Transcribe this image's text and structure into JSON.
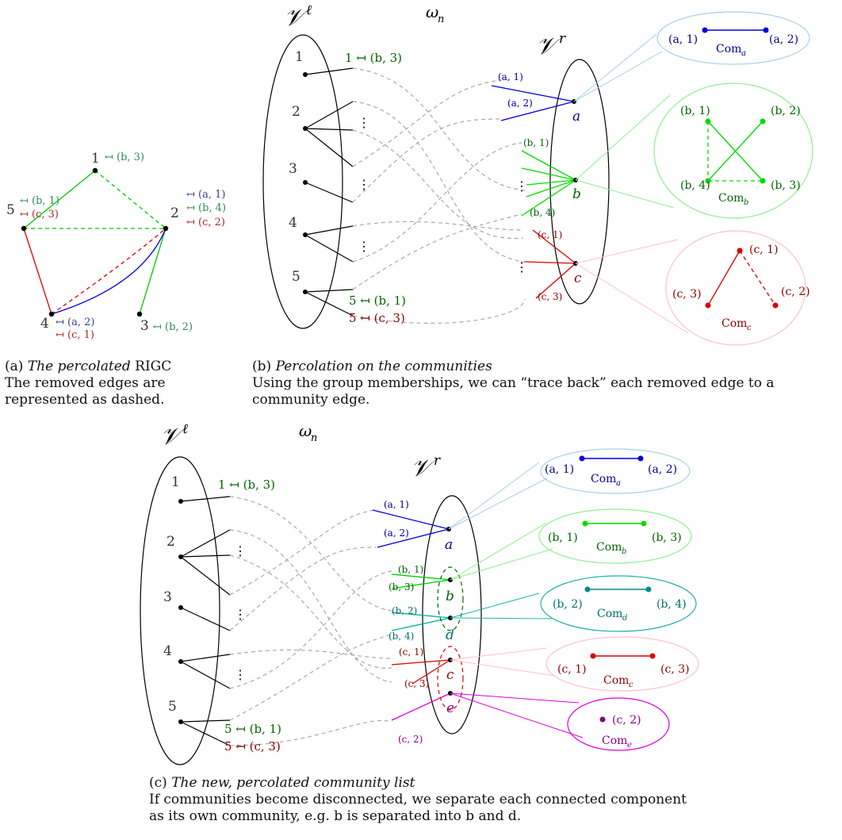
{
  "panels": {
    "a": {
      "caption_label": "(a)",
      "caption_title": "The percolated",
      "caption_title_tail": "RIGC",
      "caption_body": "The removed edges are represented as dashed.",
      "nodes": [
        {
          "id": "1",
          "labels": [
            {
              "text": "↤ (b, 3)",
              "color": "#2e8b57"
            }
          ]
        },
        {
          "id": "2",
          "labels": [
            {
              "text": "↤ (a, 1)",
              "color": "#3b3b9a"
            },
            {
              "text": "↤ (b, 4)",
              "color": "#2e8b57"
            },
            {
              "text": "↤ (c, 2)",
              "color": "#a52a2a"
            }
          ]
        },
        {
          "id": "3",
          "labels": [
            {
              "text": "↤ (b, 2)",
              "color": "#2e8b57"
            }
          ]
        },
        {
          "id": "4",
          "labels": [
            {
              "text": "↤ (a, 2)",
              "color": "#3b3b9a"
            },
            {
              "text": "↤ (c, 1)",
              "color": "#a52a2a"
            }
          ]
        },
        {
          "id": "5",
          "labels": [
            {
              "text": "↤ (b, 1)",
              "color": "#2e8b57"
            },
            {
              "text": "↤ (c, 3)",
              "color": "#a52a2a"
            }
          ]
        }
      ]
    },
    "b": {
      "caption_label": "(b)",
      "caption_title": "Percolation on the communities",
      "caption_body": "Using the group memberships, we can “trace back” each removed edge to a community edge.",
      "left_set": "𝒱",
      "left_sup": "ℓ",
      "right_set": "𝒱",
      "right_sup": "r",
      "omega": "ω",
      "omega_sub": "n",
      "left_vertices": [
        "1",
        "2",
        "3",
        "4",
        "5"
      ],
      "right_vertices": [
        "a",
        "b",
        "c"
      ],
      "half_edge_labels": {
        "top": "1 ↤ (b, 3)",
        "bottom1": "5 ↤ (b, 1)",
        "bottom2": "5 ↤ (c, 3)"
      },
      "right_half_edges": [
        "(a, 1)",
        "(a, 2)",
        "(b, 1)",
        "(b, 4)",
        "(c, 1)",
        "(c, 3)"
      ],
      "communities": [
        {
          "name": "Com",
          "sub": "a",
          "color": "#00008b",
          "nodes": [
            "(a, 1)",
            "(a, 2)"
          ]
        },
        {
          "name": "Com",
          "sub": "b",
          "color": "#006400",
          "nodes": [
            "(b, 1)",
            "(b, 2)",
            "(b, 4)",
            "(b, 3)"
          ]
        },
        {
          "name": "Com",
          "sub": "c",
          "color": "#8b0000",
          "nodes": [
            "(c, 1)",
            "(c, 3)",
            "(c, 2)"
          ]
        }
      ]
    },
    "c": {
      "caption_label": "(c)",
      "caption_title": "The new, percolated community list",
      "caption_body": "If communities become disconnected, we separate each connected component as its own community, e.g. b is separated into b and d.",
      "left_set": "𝒱",
      "left_sup": "ℓ",
      "right_set": "𝒱",
      "right_sup": "r",
      "omega": "ω",
      "omega_sub": "n",
      "left_vertices": [
        "1",
        "2",
        "3",
        "4",
        "5"
      ],
      "right_vertices": [
        "a",
        "b",
        "d",
        "c",
        "e"
      ],
      "half_edge_labels": {
        "top": "1 ↤ (b, 3)",
        "bottom1": "5 ↤ (b, 1)",
        "bottom2": "5 ↤ (c, 3)"
      },
      "right_half_edges": [
        "(a, 1)",
        "(a, 2)",
        "(b, 1)",
        "(b, 3)",
        "(b, 2)",
        "(b, 4)",
        "(c, 1)",
        "(c, 3)",
        "(c, 2)"
      ],
      "communities": [
        {
          "name": "Com",
          "sub": "a",
          "color": "#00008b",
          "nodes": [
            "(a, 1)",
            "(a, 2)"
          ]
        },
        {
          "name": "Com",
          "sub": "b",
          "color": "#006400",
          "nodes": [
            "(b, 1)",
            "(b, 3)"
          ]
        },
        {
          "name": "Com",
          "sub": "d",
          "color": "#006d6d",
          "nodes": [
            "(b, 2)",
            "(b, 4)"
          ]
        },
        {
          "name": "Com",
          "sub": "c",
          "color": "#8b0000",
          "nodes": [
            "(c, 1)",
            "(c, 3)"
          ]
        },
        {
          "name": "Com",
          "sub": "e",
          "color": "#8b008b",
          "nodes": [
            "(c, 2)"
          ]
        }
      ]
    }
  },
  "colors": {
    "green": "#00dd00",
    "blue": "#0000dd",
    "red": "#dd0000",
    "teal": "#008b8b",
    "magenta": "#dd00dd",
    "purple": "#800080",
    "gray": "#a9a9a9"
  }
}
